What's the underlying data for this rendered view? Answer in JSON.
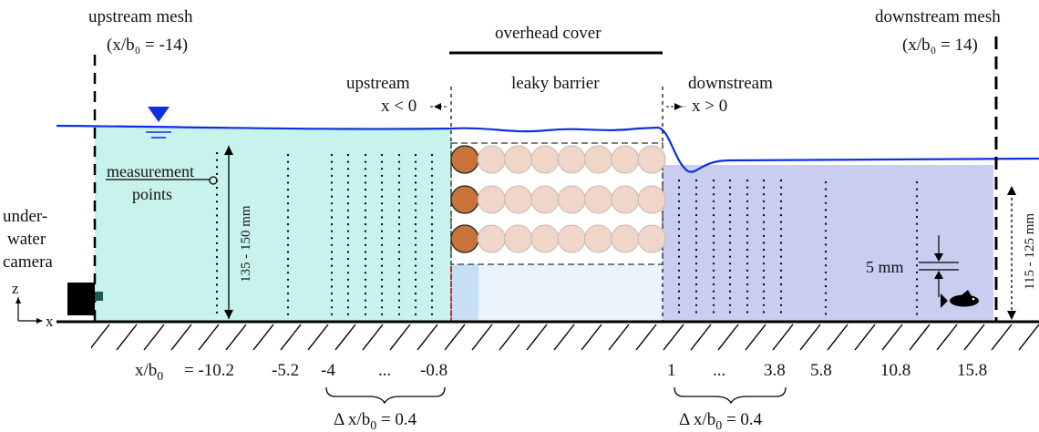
{
  "labels": {
    "upstream_mesh": "upstream mesh",
    "upstream_mesh_pos": "(x/b₀ = -14)",
    "downstream_mesh": "downstream mesh",
    "downstream_mesh_pos": "(x/b₀ = 14)",
    "overhead_cover": "overhead cover",
    "upstream": "upstream",
    "upstream_cond": "x < 0",
    "leaky_barrier": "leaky barrier",
    "downstream": "downstream",
    "downstream_cond": "x > 0",
    "measurement": "measurement",
    "points": "points",
    "camera_line1": "under-",
    "camera_line2": "water",
    "camera_line3": "camera",
    "depth_upstream": "135 - 150 mm",
    "depth_downstream": "115 - 125 mm",
    "spacing_5mm": "5 mm",
    "axis_z": "z",
    "axis_x": "x",
    "xb_label": "x/b",
    "xb_sub": "0",
    "dx_upstream": "Δ x/b",
    "dx_upstream_sub": "0",
    "dx_upstream_val": " = 0.4",
    "dx_downstream": "Δ x/b",
    "dx_downstream_sub": "0",
    "dx_downstream_val": " = 0.4"
  },
  "positions": {
    "first": "= -10.2",
    "items": [
      "-5.2",
      "-4",
      "...",
      "-0.8",
      "1",
      "...",
      "3.8",
      "5.8",
      "10.8",
      "15.8"
    ]
  },
  "colors": {
    "upstream_water": "#c8f2ec",
    "downstream_water": "#c9cdf0",
    "water_line": "#1030e0",
    "log_dark": "#c8733a",
    "log_light": "#efd6c8",
    "red_marker": "#e00000"
  }
}
